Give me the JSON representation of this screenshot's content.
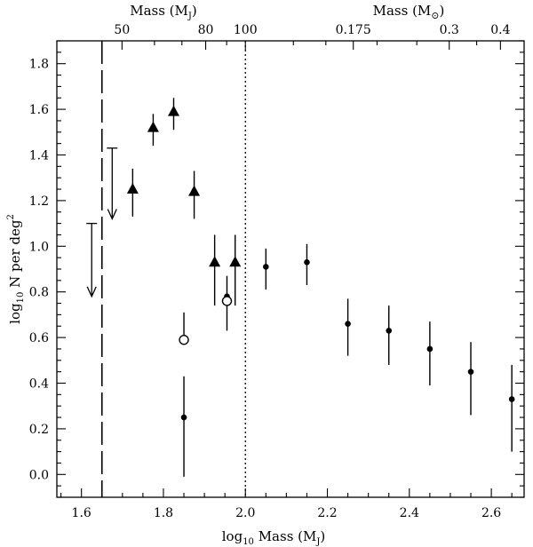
{
  "chart_data": {
    "type": "scatter",
    "xlabel": "log",
    "xlabel_sub": "10",
    "xlabel_rest": " Mass (M",
    "xlabel_sub2": "J",
    "xlabel_close": ")",
    "ylabel": "log",
    "ylabel_sub": "10",
    "ylabel_rest": " N per deg",
    "ylabel_sup": "2",
    "xlim": [
      1.54,
      2.68
    ],
    "ylim": [
      -0.1,
      1.9
    ],
    "x_ticks": [
      "1.6",
      "1.8",
      "2.0",
      "2.2",
      "2.4",
      "2.6"
    ],
    "x_tick_values": [
      1.6,
      1.8,
      2.0,
      2.2,
      2.4,
      2.6
    ],
    "y_ticks": [
      "0.0",
      "0.2",
      "0.4",
      "0.6",
      "0.8",
      "1.0",
      "1.2",
      "1.4",
      "1.6",
      "1.8"
    ],
    "y_tick_values": [
      0.0,
      0.2,
      0.4,
      0.6,
      0.8,
      1.0,
      1.2,
      1.4,
      1.6,
      1.8
    ],
    "top_axis_left": {
      "label": "Mass (M",
      "label_sub": "J",
      "label_close": ")",
      "ticks": [
        {
          "label": "50",
          "mass": 50
        },
        {
          "label": "80",
          "mass": 80
        },
        {
          "label": "100",
          "mass": 100
        }
      ]
    },
    "top_axis_right": {
      "label": "Mass (M",
      "label_symbol": "⊙",
      "label_close": ")",
      "ticks": [
        {
          "label": "0.175",
          "mass_msun": 0.175
        },
        {
          "label": "0.3",
          "mass_msun": 0.3
        },
        {
          "label": "0.4",
          "mass_msun": 0.4
        }
      ]
    },
    "reference_lines": [
      {
        "style": "dashed",
        "x": 1.65
      },
      {
        "style": "dotted",
        "x": 2.0
      }
    ],
    "series": [
      {
        "marker": "filled-triangle",
        "points": [
          {
            "x": 1.725,
            "y": 1.25,
            "ylo": 1.13,
            "yhi": 1.34
          },
          {
            "x": 1.775,
            "y": 1.52,
            "ylo": 1.44,
            "yhi": 1.58
          },
          {
            "x": 1.825,
            "y": 1.59,
            "ylo": 1.51,
            "yhi": 1.65
          },
          {
            "x": 1.875,
            "y": 1.24,
            "ylo": 1.12,
            "yhi": 1.33
          },
          {
            "x": 1.925,
            "y": 0.93,
            "ylo": 0.74,
            "yhi": 1.05
          },
          {
            "x": 1.975,
            "y": 0.93,
            "ylo": 0.74,
            "yhi": 1.05
          }
        ]
      },
      {
        "marker": "filled-circle",
        "points": [
          {
            "x": 1.85,
            "y": 0.25,
            "ylo": -0.01,
            "yhi": 0.43
          },
          {
            "x": 1.955,
            "y": 0.78,
            "ylo": 0.63,
            "yhi": 0.87
          },
          {
            "x": 2.05,
            "y": 0.91,
            "ylo": 0.81,
            "yhi": 0.99
          },
          {
            "x": 2.15,
            "y": 0.93,
            "ylo": 0.83,
            "yhi": 1.01
          },
          {
            "x": 2.25,
            "y": 0.66,
            "ylo": 0.52,
            "yhi": 0.77
          },
          {
            "x": 2.35,
            "y": 0.63,
            "ylo": 0.48,
            "yhi": 0.74
          },
          {
            "x": 2.45,
            "y": 0.55,
            "ylo": 0.39,
            "yhi": 0.67
          },
          {
            "x": 2.55,
            "y": 0.45,
            "ylo": 0.26,
            "yhi": 0.58
          },
          {
            "x": 2.65,
            "y": 0.33,
            "ylo": 0.1,
            "yhi": 0.48
          }
        ]
      },
      {
        "marker": "open-circle",
        "points": [
          {
            "x": 1.85,
            "y": 0.59,
            "ylo": 0.59,
            "yhi": 0.71
          },
          {
            "x": 1.955,
            "y": 0.76,
            "ylo": 0.76,
            "yhi": 0.76
          }
        ]
      },
      {
        "marker": "upper-limit-arrow",
        "points": [
          {
            "x": 1.625,
            "y_top": 1.1,
            "y_bottom": 0.78
          },
          {
            "x": 1.675,
            "y_top": 1.43,
            "y_bottom": 1.12
          }
        ]
      }
    ]
  },
  "colors": {
    "ink": "#000000",
    "background": "#ffffff"
  }
}
